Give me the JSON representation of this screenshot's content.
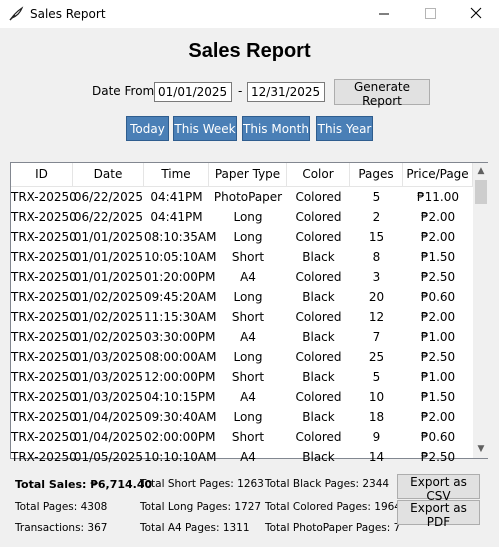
{
  "window": {
    "title": "Sales Report",
    "app_icon": "feather-pen-icon",
    "controls": [
      "minimize-icon",
      "maximize-icon",
      "close-icon"
    ]
  },
  "page_title": "Sales Report",
  "filters": {
    "date_from_label": "Date From:",
    "date_from_value": "01/01/2025",
    "separator": "-",
    "date_to_value": "12/31/2025",
    "generate_label": "Generate Report"
  },
  "quick_ranges": {
    "today": "Today",
    "this_week": "This Week",
    "this_month": "This Month",
    "this_year": "This Year",
    "button_color": "#4a7fb6"
  },
  "table": {
    "columns": [
      "ID",
      "Date",
      "Time",
      "Paper Type",
      "Color",
      "Pages",
      "Price/Page"
    ],
    "rows": [
      [
        "TRX-20250",
        "06/22/2025",
        "04:41PM",
        "PhotoPaper",
        "Colored",
        "5",
        "₱11.00"
      ],
      [
        "TRX-20250",
        "06/22/2025",
        "04:41PM",
        "Long",
        "Colored",
        "2",
        "₱2.00"
      ],
      [
        "TRX-20250",
        "01/01/2025",
        "08:10:35AM",
        "Long",
        "Colored",
        "15",
        "₱2.00"
      ],
      [
        "TRX-20250",
        "01/01/2025",
        "10:05:10AM",
        "Short",
        "Black",
        "8",
        "₱1.50"
      ],
      [
        "TRX-20250",
        "01/01/2025",
        "01:20:00PM",
        "A4",
        "Colored",
        "3",
        "₱2.50"
      ],
      [
        "TRX-20250",
        "01/02/2025",
        "09:45:20AM",
        "Long",
        "Black",
        "20",
        "₱0.60"
      ],
      [
        "TRX-20250",
        "01/02/2025",
        "11:15:30AM",
        "Short",
        "Colored",
        "12",
        "₱2.00"
      ],
      [
        "TRX-20250",
        "01/02/2025",
        "03:30:00PM",
        "A4",
        "Black",
        "7",
        "₱1.00"
      ],
      [
        "TRX-20250",
        "01/03/2025",
        "08:00:00AM",
        "Long",
        "Colored",
        "25",
        "₱2.50"
      ],
      [
        "TRX-20250",
        "01/03/2025",
        "12:00:00PM",
        "Short",
        "Black",
        "5",
        "₱1.00"
      ],
      [
        "TRX-20250",
        "01/03/2025",
        "04:10:15PM",
        "A4",
        "Colored",
        "10",
        "₱1.50"
      ],
      [
        "TRX-20250",
        "01/04/2025",
        "09:30:40AM",
        "Long",
        "Black",
        "18",
        "₱2.00"
      ],
      [
        "TRX-20250",
        "01/04/2025",
        "02:00:00PM",
        "Short",
        "Colored",
        "9",
        "₱0.60"
      ],
      [
        "TRX-20250",
        "01/05/2025",
        "10:10:10AM",
        "A4",
        "Black",
        "14",
        "₱2.50"
      ]
    ]
  },
  "summary": {
    "total_sales": "Total Sales: ₱6,714.40",
    "total_pages": "Total Pages: 4308",
    "transactions": "Transactions: 367",
    "total_short": "Total Short Pages: 1263",
    "total_long": "Total Long Pages: 1727",
    "total_a4": "Total A4 Pages: 1311",
    "total_black": "Total Black Pages: 2344",
    "total_colored": "Total Colored Pages: 1964",
    "total_photopaper": "Total PhotoPaper Pages: 7"
  },
  "export": {
    "csv_label": "Export as CSV",
    "pdf_label": "Export as PDF"
  }
}
